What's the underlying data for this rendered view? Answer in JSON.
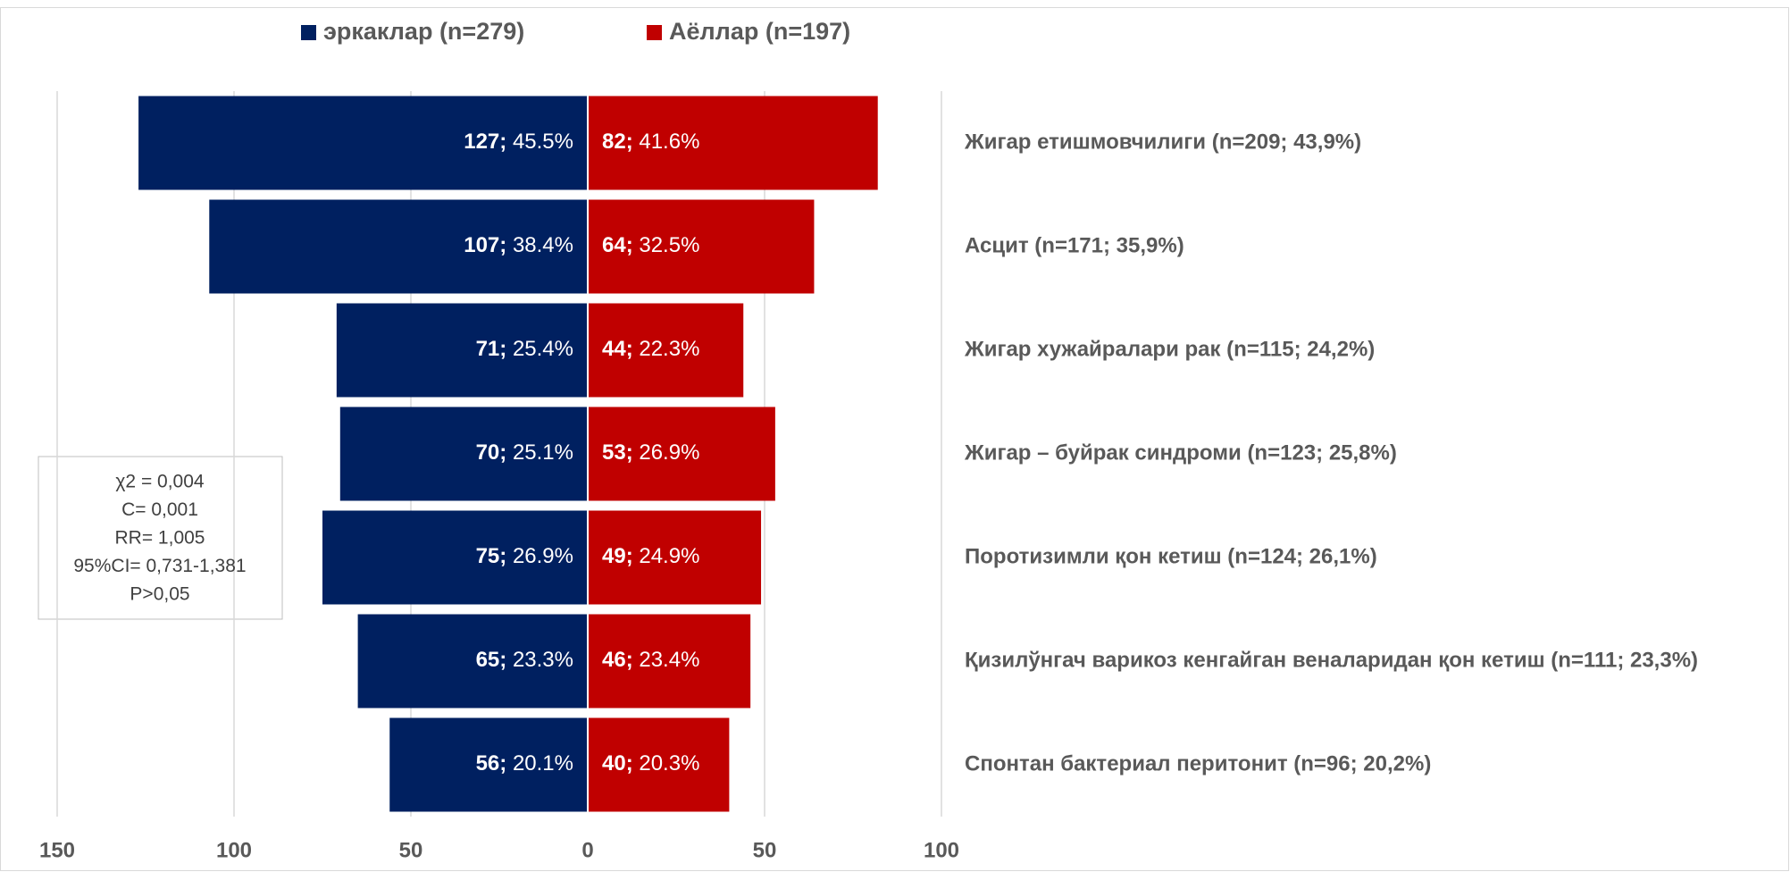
{
  "chart_data": {
    "type": "butterfly-bar",
    "categories": [
      "Жигар етишмовчилиги (n=209; 43,9%)",
      "Асцит (n=171; 35,9%)",
      "Жигар хужайралари рак (n=115; 24,2%)",
      "Жигар – буйрак синдроми (n=123; 25,8%)",
      "Поротизимли қон кетиш (n=124; 26,1%)",
      "Қизилўнгач варикоз кенгайган веналаридан қон кетиш (n=111; 23,3%)",
      "Спонтан бактериал перитонит (n=96; 20,2%)"
    ],
    "series": [
      {
        "name": "эркаклар (n=279)",
        "color": "#002060",
        "direction": "left",
        "values": [
          127,
          107,
          71,
          70,
          75,
          65,
          56
        ],
        "value_labels": [
          "127;",
          "107;",
          "71;",
          "70;",
          "75;",
          "65;",
          "56;"
        ],
        "percent_labels": [
          "45.5%",
          "38.4%",
          "25.4%",
          "25.1%",
          "26.9%",
          "23.3%",
          "20.1%"
        ]
      },
      {
        "name": "Аёллар (n=197)",
        "color": "#c00000",
        "direction": "right",
        "values": [
          82,
          64,
          44,
          53,
          49,
          46,
          40
        ],
        "value_labels": [
          "82;",
          "64;",
          "44;",
          "53;",
          "49;",
          "46;",
          "40;"
        ],
        "percent_labels": [
          "41.6%",
          "32.5%",
          "22.3%",
          "26.9%",
          "24.9%",
          "23.4%",
          "20.3%"
        ]
      }
    ],
    "xlim": [
      -150,
      100
    ],
    "xticks": [
      {
        "value": -150,
        "label": "150"
      },
      {
        "value": -100,
        "label": "100"
      },
      {
        "value": -50,
        "label": "50"
      },
      0,
      50,
      100
    ],
    "grid": true,
    "legend": "top",
    "annotation": [
      "χ2 = 0,004",
      "C= 0,001",
      "RR= 1,005",
      "95%CI= 0,731-1,381",
      "P>0,05"
    ]
  }
}
